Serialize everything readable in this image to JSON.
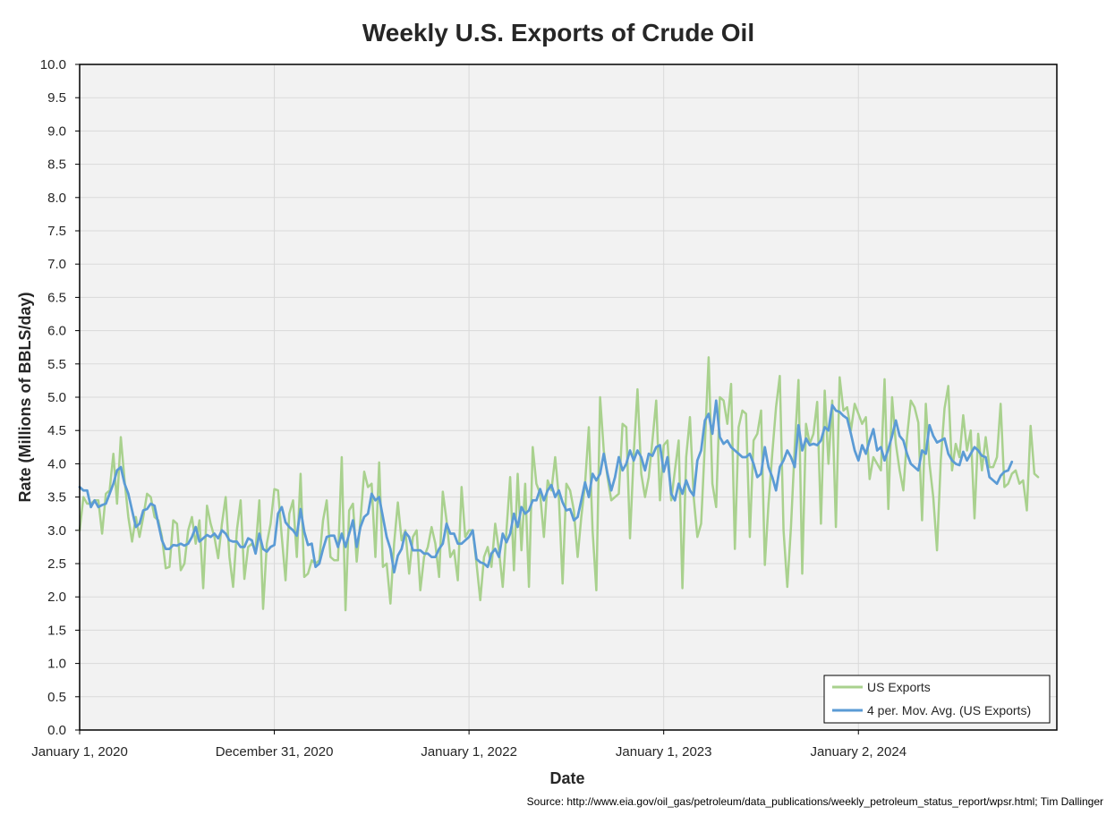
{
  "chart_data": {
    "type": "line",
    "title": "Weekly U.S. Exports of Crude Oil",
    "xlabel": "Date",
    "ylabel": "Rate (Millions of BBLS/day)",
    "source": "Source: http://www.eia.gov/oil_gas/petroleum/data_publications/weekly_petroleum_status_report/wpsr.html; Tim Dallinger",
    "ylim": [
      0,
      10
    ],
    "y_ticks": [
      "0.0",
      "0.5",
      "1.0",
      "1.5",
      "2.0",
      "2.5",
      "3.0",
      "3.5",
      "4.0",
      "4.5",
      "5.0",
      "5.5",
      "6.0",
      "6.5",
      "7.0",
      "7.5",
      "8.0",
      "8.5",
      "9.0",
      "9.5",
      "10.0"
    ],
    "x_start": "2020-01-01",
    "x_step_days": 7,
    "x_ticks": [
      {
        "label": "January 1, 2020",
        "week": 0
      },
      {
        "label": "December 31, 2020",
        "week": 52
      },
      {
        "label": "January 1, 2022",
        "week": 104
      },
      {
        "label": "January 1, 2023",
        "week": 156
      },
      {
        "label": "January 2, 2024",
        "week": 208
      }
    ],
    "x_range_weeks": [
      0,
      261
    ],
    "grid": true,
    "legend_position": "bottom-right",
    "series": [
      {
        "name": "US Exports",
        "color": "#a9d18e",
        "values": [
          3.0,
          3.5,
          3.4,
          3.4,
          3.45,
          3.45,
          2.95,
          3.55,
          3.6,
          4.15,
          3.4,
          4.4,
          3.75,
          3.2,
          2.83,
          3.2,
          2.9,
          3.2,
          3.55,
          3.5,
          3.2,
          3.15,
          2.9,
          2.43,
          2.45,
          3.15,
          3.1,
          2.4,
          2.5,
          3.0,
          3.2,
          2.8,
          3.15,
          2.13,
          3.37,
          3.1,
          2.9,
          2.58,
          3.1,
          3.5,
          2.6,
          2.15,
          3.0,
          3.45,
          2.27,
          2.75,
          2.8,
          2.7,
          3.45,
          1.82,
          2.8,
          3.1,
          3.62,
          3.6,
          2.9,
          2.25,
          3.25,
          3.45,
          2.6,
          3.85,
          2.3,
          2.35,
          2.55,
          2.5,
          2.55,
          3.15,
          3.45,
          2.6,
          2.55,
          2.55,
          4.1,
          1.8,
          3.3,
          3.4,
          2.53,
          3.15,
          3.88,
          3.65,
          3.7,
          2.6,
          4.02,
          2.45,
          2.5,
          1.9,
          2.8,
          3.42,
          2.85,
          3.0,
          2.35,
          2.9,
          3.0,
          2.1,
          2.6,
          2.75,
          3.05,
          2.8,
          2.3,
          3.58,
          3.15,
          2.6,
          2.7,
          2.25,
          3.65,
          2.9,
          3.0,
          3.0,
          2.5,
          1.95,
          2.6,
          2.75,
          2.45,
          3.1,
          2.7,
          2.15,
          3.0,
          3.8,
          2.4,
          3.85,
          2.7,
          3.7,
          2.15,
          4.25,
          3.7,
          3.55,
          2.9,
          3.75,
          3.6,
          4.1,
          3.5,
          2.2,
          3.7,
          3.6,
          3.3,
          2.6,
          3.2,
          3.7,
          4.55,
          3.0,
          2.1,
          5.0,
          4.2,
          3.8,
          3.45,
          3.5,
          3.55,
          4.6,
          4.55,
          2.88,
          4.15,
          5.12,
          3.85,
          3.5,
          3.8,
          4.35,
          4.95,
          3.45,
          4.28,
          4.35,
          3.45,
          3.9,
          4.35,
          2.13,
          4.1,
          4.7,
          3.5,
          2.9,
          3.1,
          4.3,
          5.6,
          3.7,
          3.35,
          5.0,
          4.95,
          4.6,
          5.2,
          2.72,
          4.55,
          4.8,
          4.75,
          2.9,
          4.35,
          4.45,
          4.8,
          2.48,
          3.4,
          4.15,
          4.85,
          5.32,
          3.0,
          2.15,
          3.05,
          4.25,
          5.26,
          2.35,
          4.6,
          4.3,
          4.45,
          4.93,
          3.1,
          5.1,
          4.0,
          4.95,
          3.05,
          5.3,
          4.8,
          4.85,
          4.5,
          4.9,
          4.75,
          4.6,
          4.7,
          3.77,
          4.1,
          4.0,
          3.9,
          5.27,
          3.32,
          5.0,
          4.3,
          3.9,
          3.6,
          4.4,
          4.95,
          4.85,
          4.62,
          3.15,
          4.9,
          4.0,
          3.5,
          2.7,
          4.05,
          4.83,
          5.17,
          3.9,
          4.3,
          4.1,
          4.73,
          4.2,
          4.5,
          3.18,
          4.45,
          3.9,
          4.4,
          3.95,
          3.95,
          4.1,
          4.9,
          3.65,
          3.7,
          3.85,
          3.9,
          3.7,
          3.75,
          3.3,
          4.57,
          3.85,
          3.8
        ]
      },
      {
        "name": "4 per. Mov. Avg. (US Exports)",
        "color": "#5b9bd5",
        "values": [
          3.65,
          3.6,
          3.6,
          3.35,
          3.45,
          3.35,
          3.38,
          3.4,
          3.55,
          3.7,
          3.9,
          3.95,
          3.7,
          3.55,
          3.3,
          3.05,
          3.1,
          3.3,
          3.32,
          3.4,
          3.37,
          3.1,
          2.85,
          2.72,
          2.72,
          2.78,
          2.77,
          2.8,
          2.77,
          2.8,
          2.9,
          3.05,
          2.83,
          2.88,
          2.93,
          2.9,
          2.95,
          2.88,
          3.0,
          2.95,
          2.85,
          2.83,
          2.83,
          2.75,
          2.75,
          2.88,
          2.85,
          2.65,
          2.95,
          2.72,
          2.68,
          2.75,
          2.78,
          3.25,
          3.35,
          3.12,
          3.05,
          3.0,
          2.92,
          3.32,
          2.98,
          2.78,
          2.8,
          2.45,
          2.5,
          2.72,
          2.9,
          2.92,
          2.92,
          2.75,
          2.95,
          2.75,
          2.95,
          3.15,
          2.75,
          3.05,
          3.2,
          3.25,
          3.55,
          3.45,
          3.5,
          3.2,
          2.9,
          2.72,
          2.37,
          2.62,
          2.72,
          2.97,
          2.9,
          2.7,
          2.7,
          2.7,
          2.65,
          2.65,
          2.6,
          2.6,
          2.72,
          2.8,
          3.1,
          2.95,
          2.95,
          2.8,
          2.8,
          2.85,
          2.9,
          3.0,
          2.57,
          2.52,
          2.5,
          2.45,
          2.65,
          2.72,
          2.6,
          2.95,
          2.82,
          2.95,
          3.25,
          3.05,
          3.35,
          3.25,
          3.3,
          3.45,
          3.45,
          3.62,
          3.45,
          3.6,
          3.68,
          3.5,
          3.6,
          3.42,
          3.3,
          3.32,
          3.15,
          3.2,
          3.45,
          3.72,
          3.5,
          3.85,
          3.75,
          3.85,
          4.15,
          3.85,
          3.6,
          3.8,
          4.1,
          3.9,
          4.0,
          4.2,
          4.05,
          4.2,
          4.1,
          3.9,
          4.15,
          4.12,
          4.25,
          4.28,
          3.88,
          4.1,
          3.55,
          3.45,
          3.7,
          3.55,
          3.75,
          3.6,
          3.52,
          4.05,
          4.2,
          4.65,
          4.75,
          4.45,
          4.95,
          4.4,
          4.3,
          4.35,
          4.25,
          4.2,
          4.15,
          4.1,
          4.1,
          4.15,
          4.0,
          3.8,
          3.85,
          4.25,
          3.95,
          3.8,
          3.6,
          3.95,
          4.05,
          4.2,
          4.1,
          3.95,
          4.58,
          4.2,
          4.38,
          4.28,
          4.3,
          4.28,
          4.35,
          4.55,
          4.5,
          4.88,
          4.8,
          4.78,
          4.72,
          4.68,
          4.45,
          4.2,
          4.05,
          4.28,
          4.15,
          4.35,
          4.52,
          4.2,
          4.25,
          4.05,
          4.22,
          4.42,
          4.65,
          4.42,
          4.35,
          4.15,
          4.0,
          3.95,
          3.9,
          4.2,
          4.15,
          4.58,
          4.42,
          4.32,
          4.35,
          4.38,
          4.15,
          4.05,
          4.0,
          3.98,
          4.18,
          4.05,
          4.15,
          4.25,
          4.2,
          4.12,
          4.1,
          3.8,
          3.75,
          3.7,
          3.82,
          3.88,
          3.9,
          4.03
        ]
      }
    ]
  }
}
